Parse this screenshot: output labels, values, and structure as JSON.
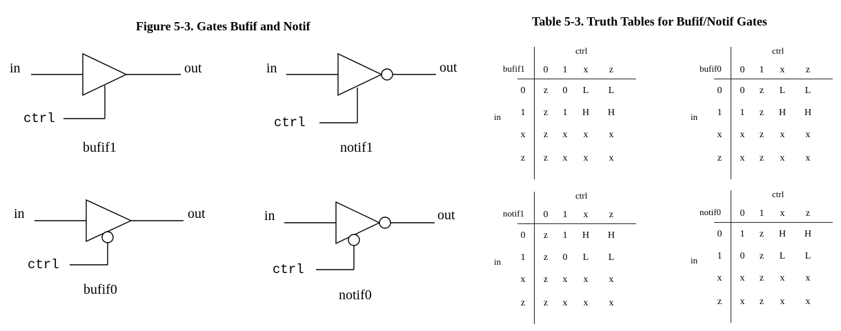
{
  "figure": {
    "title": "Figure 5-3. Gates Bufif and Notif",
    "gates": [
      {
        "name": "bufif1",
        "in_label": "in",
        "out_label": "out",
        "ctrl_label": "ctrl",
        "inverted_output": false,
        "active_low_ctrl": false
      },
      {
        "name": "notif1",
        "in_label": "in",
        "out_label": "out",
        "ctrl_label": "ctrl",
        "inverted_output": true,
        "active_low_ctrl": false
      },
      {
        "name": "bufif0",
        "in_label": "in",
        "out_label": "out",
        "ctrl_label": "ctrl",
        "inverted_output": false,
        "active_low_ctrl": true
      },
      {
        "name": "notif0",
        "in_label": "in",
        "out_label": "out",
        "ctrl_label": "ctrl",
        "inverted_output": true,
        "active_low_ctrl": true
      }
    ]
  },
  "table": {
    "title": "Table 5-3. Truth Tables for Bufif/Notif Gates",
    "tables": [
      {
        "gate": "bufif1",
        "ctrl_label": "ctrl",
        "in_label": "in",
        "cols": [
          "0",
          "1",
          "x",
          "z"
        ],
        "rows": [
          "0",
          "1",
          "x",
          "z"
        ],
        "cells": [
          [
            "z",
            "0",
            "L",
            "L"
          ],
          [
            "z",
            "1",
            "H",
            "H"
          ],
          [
            "z",
            "x",
            "x",
            "x"
          ],
          [
            "z",
            "x",
            "x",
            "x"
          ]
        ]
      },
      {
        "gate": "bufif0",
        "ctrl_label": "ctrl",
        "in_label": "in",
        "cols": [
          "0",
          "1",
          "x",
          "z"
        ],
        "rows": [
          "0",
          "1",
          "x",
          "z"
        ],
        "cells": [
          [
            "0",
            "z",
            "L",
            "L"
          ],
          [
            "1",
            "z",
            "H",
            "H"
          ],
          [
            "x",
            "z",
            "x",
            "x"
          ],
          [
            "x",
            "z",
            "x",
            "x"
          ]
        ]
      },
      {
        "gate": "notif1",
        "ctrl_label": "ctrl",
        "in_label": "in",
        "cols": [
          "0",
          "1",
          "x",
          "z"
        ],
        "rows": [
          "0",
          "1",
          "x",
          "z"
        ],
        "cells": [
          [
            "z",
            "1",
            "H",
            "H"
          ],
          [
            "z",
            "0",
            "L",
            "L"
          ],
          [
            "z",
            "x",
            "x",
            "x"
          ],
          [
            "z",
            "x",
            "x",
            "x"
          ]
        ]
      },
      {
        "gate": "notif0",
        "ctrl_label": "ctrl",
        "in_label": "in",
        "cols": [
          "0",
          "1",
          "x",
          "z"
        ],
        "rows": [
          "0",
          "1",
          "x",
          "z"
        ],
        "cells": [
          [
            "1",
            "z",
            "H",
            "H"
          ],
          [
            "0",
            "z",
            "L",
            "L"
          ],
          [
            "x",
            "z",
            "x",
            "x"
          ],
          [
            "x",
            "z",
            "x",
            "x"
          ]
        ]
      }
    ]
  }
}
